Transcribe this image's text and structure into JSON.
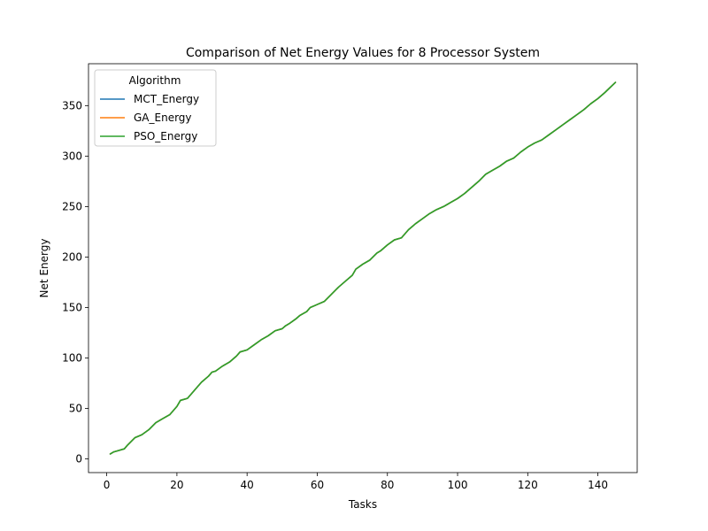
{
  "chart_data": {
    "type": "line",
    "title": "Comparison of Net Energy Values for 8 Processor System",
    "xlabel": "Tasks",
    "ylabel": "Net Energy",
    "xlim": [
      -5.2,
      151.2
    ],
    "ylim": [
      -13.5,
      391.5
    ],
    "xticks": [
      0,
      20,
      40,
      60,
      80,
      100,
      120,
      140
    ],
    "yticks": [
      0,
      50,
      100,
      150,
      200,
      250,
      300,
      350
    ],
    "grid": false,
    "legend": {
      "title": "Algorithm",
      "position": "top-left",
      "entries": [
        "MCT_Energy",
        "GA_Energy",
        "PSO_Energy"
      ]
    },
    "x": [
      1,
      2,
      3,
      5,
      6,
      8,
      10,
      12,
      14,
      16,
      18,
      20,
      21,
      23,
      24,
      25,
      27,
      29,
      30,
      31,
      33,
      35,
      37,
      38,
      40,
      42,
      44,
      46,
      48,
      50,
      51,
      52,
      54,
      55,
      57,
      58,
      60,
      62,
      64,
      66,
      68,
      70,
      71,
      73,
      75,
      77,
      78,
      80,
      82,
      84,
      86,
      88,
      90,
      92,
      94,
      96,
      98,
      100,
      102,
      104,
      106,
      108,
      110,
      112,
      114,
      116,
      118,
      120,
      122,
      124,
      126,
      128,
      130,
      132,
      134,
      136,
      138,
      140,
      142,
      145
    ],
    "series": [
      {
        "name": "MCT_Energy",
        "color": "#1f77b4",
        "values": [
          5,
          7,
          8,
          10,
          14,
          21,
          24,
          29,
          36,
          40,
          44,
          52,
          58,
          60,
          64,
          68,
          76,
          82,
          86,
          87,
          92,
          96,
          102,
          106,
          108,
          113,
          118,
          122,
          127,
          129,
          132,
          134,
          139,
          142,
          146,
          150,
          153,
          156,
          163,
          170,
          176,
          182,
          188,
          193,
          197,
          204,
          206,
          212,
          217,
          219,
          227,
          233,
          238,
          243,
          247,
          250,
          254,
          258,
          263,
          269,
          275,
          282,
          286,
          290,
          295,
          298,
          304,
          309,
          313,
          316,
          321,
          326,
          331,
          336,
          341,
          346,
          352,
          357,
          363,
          373
        ]
      },
      {
        "name": "GA_Energy",
        "color": "#ff7f0e",
        "values": [
          5,
          7,
          8,
          10,
          14,
          21,
          24,
          29,
          36,
          40,
          44,
          52,
          58,
          60,
          64,
          68,
          76,
          82,
          86,
          87,
          92,
          96,
          102,
          106,
          108,
          113,
          118,
          122,
          127,
          129,
          132,
          134,
          139,
          142,
          146,
          150,
          153,
          156,
          163,
          170,
          176,
          182,
          188,
          193,
          197,
          204,
          206,
          212,
          217,
          219,
          227,
          233,
          238,
          243,
          247,
          250,
          254,
          258,
          263,
          269,
          275,
          282,
          286,
          290,
          295,
          298,
          304,
          309,
          313,
          316,
          321,
          326,
          331,
          336,
          341,
          346,
          352,
          357,
          363,
          373
        ]
      },
      {
        "name": "PSO_Energy",
        "color": "#2ca02c",
        "values": [
          5,
          7,
          8,
          10,
          14,
          21,
          24,
          29,
          36,
          40,
          44,
          52,
          58,
          60,
          64,
          68,
          76,
          82,
          86,
          87,
          92,
          96,
          102,
          106,
          108,
          113,
          118,
          122,
          127,
          129,
          132,
          134,
          139,
          142,
          146,
          150,
          153,
          156,
          163,
          170,
          176,
          182,
          188,
          193,
          197,
          204,
          206,
          212,
          217,
          219,
          227,
          233,
          238,
          243,
          247,
          250,
          254,
          258,
          263,
          269,
          275,
          282,
          286,
          290,
          295,
          298,
          304,
          309,
          313,
          316,
          321,
          326,
          331,
          336,
          341,
          346,
          352,
          357,
          363,
          373
        ]
      }
    ]
  }
}
